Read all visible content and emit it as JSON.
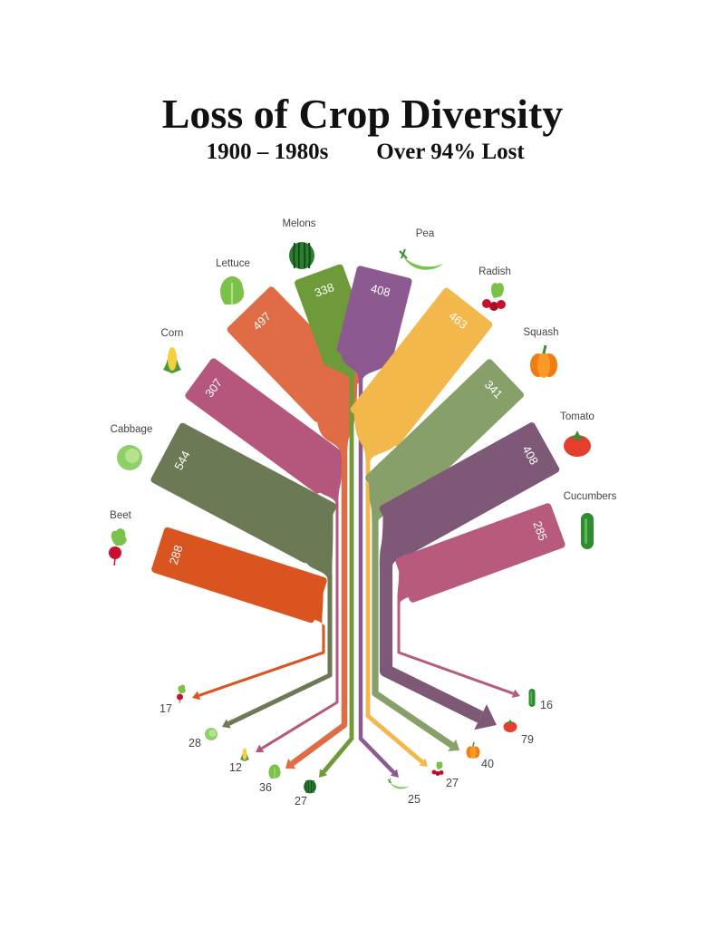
{
  "chart_data": {
    "type": "sankey-tree",
    "title": "Loss of Crop Diversity",
    "subtitle_left": "1900 – 1980s",
    "subtitle_right": "Over 94% Lost",
    "series_order": [
      "varieties_1900",
      "varieties_1980s"
    ],
    "crops": [
      {
        "name": "Beet",
        "v1900": 288,
        "v1980": 17,
        "color": "#d9541f",
        "icon": "beet"
      },
      {
        "name": "Cabbage",
        "v1900": 544,
        "v1980": 28,
        "color": "#6b7a55",
        "icon": "cabbage"
      },
      {
        "name": "Corn",
        "v1900": 307,
        "v1980": 12,
        "color": "#b5577c",
        "icon": "corn"
      },
      {
        "name": "Lettuce",
        "v1900": 497,
        "v1980": 36,
        "color": "#e06c45",
        "icon": "lettuce"
      },
      {
        "name": "Melons",
        "v1900": 338,
        "v1980": 27,
        "color": "#6e9a3a",
        "icon": "watermelon"
      },
      {
        "name": "Pea",
        "v1900": 408,
        "v1980": 25,
        "color": "#8c5a90",
        "icon": "pea"
      },
      {
        "name": "Radish",
        "v1900": 463,
        "v1980": 27,
        "color": "#f2b84b",
        "icon": "radish"
      },
      {
        "name": "Squash",
        "v1900": 341,
        "v1980": 40,
        "color": "#87a06a",
        "icon": "pumpkin"
      },
      {
        "name": "Tomato",
        "v1900": 408,
        "v1980": 79,
        "color": "#7e5877",
        "icon": "tomato"
      },
      {
        "name": "Cucumbers",
        "v1900": 285,
        "v1980": 16,
        "color": "#b85a7e",
        "icon": "cucumber"
      }
    ]
  }
}
